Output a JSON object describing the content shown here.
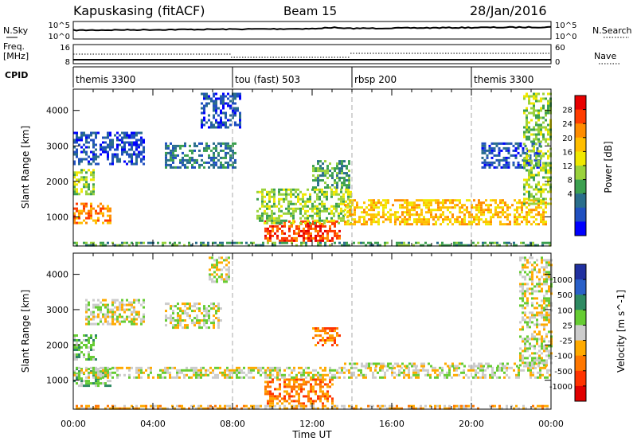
{
  "header": {
    "station": "Kapuskasing (fitACF)",
    "beam": "Beam 15",
    "date": "28/Jan/2016"
  },
  "top_strip": {
    "left_label": "N.Sky",
    "right_label": "N.Search",
    "left_ticks": [
      "10^5",
      "10^0"
    ],
    "right_ticks": [
      "10^5",
      "10^0"
    ]
  },
  "freq_strip": {
    "left_label_1": "Freq.",
    "left_label_2": "[MHz]",
    "left_ticks": [
      "16",
      "8"
    ],
    "right_label": "Nave",
    "right_ticks": [
      "60",
      "0"
    ]
  },
  "cpid": {
    "label": "CPID",
    "segments": [
      {
        "label": "themis 3300",
        "start_hour": 0
      },
      {
        "label": "tou (fast) 503",
        "start_hour": 8
      },
      {
        "label": "rbsp 200",
        "start_hour": 14
      },
      {
        "label": "themis 3300",
        "start_hour": 20
      }
    ]
  },
  "x_axis": {
    "label": "Time UT",
    "ticks": [
      "00:00",
      "04:00",
      "08:00",
      "12:00",
      "16:00",
      "20:00",
      "00:00"
    ],
    "range_hours": [
      0,
      24
    ]
  },
  "chart_data": [
    {
      "type": "heatmap",
      "ylabel": "Slant Range [km]",
      "ylim": [
        180,
        4600
      ],
      "yticks": [
        1000,
        2000,
        3000,
        4000
      ],
      "colorbar": {
        "title": "Power [dB]",
        "labels": [
          "28",
          "24",
          "20",
          "16",
          "12",
          "8",
          "4"
        ],
        "colors": [
          "#e80000",
          "#ff3c00",
          "#ff8c00",
          "#ffbe00",
          "#f0e800",
          "#9ad23c",
          "#3ca050",
          "#2a6e8c",
          "#2050c0",
          "#0000ff"
        ]
      },
      "regions": [
        {
          "t": [
            6.4,
            8.4
          ],
          "r": [
            3500,
            4500
          ],
          "level": 1
        },
        {
          "t": [
            0.0,
            3.6
          ],
          "r": [
            2500,
            3400
          ],
          "level": 1
        },
        {
          "t": [
            4.6,
            8.2
          ],
          "r": [
            2400,
            3100
          ],
          "level": 2
        },
        {
          "t": [
            0.0,
            1.0
          ],
          "r": [
            1650,
            2350
          ],
          "level": 4
        },
        {
          "t": [
            0.0,
            1.9
          ],
          "r": [
            850,
            1400
          ],
          "level": 7
        },
        {
          "t": [
            9.6,
            13.4
          ],
          "r": [
            300,
            900
          ],
          "level": 8
        },
        {
          "t": [
            9.2,
            14.0
          ],
          "r": [
            800,
            1800
          ],
          "level": 4
        },
        {
          "t": [
            12.0,
            13.8
          ],
          "r": [
            1800,
            2600
          ],
          "level": 3
        },
        {
          "t": [
            13.6,
            23.7
          ],
          "r": [
            800,
            1500
          ],
          "level": 6
        },
        {
          "t": [
            20.5,
            23.5
          ],
          "r": [
            2400,
            3100
          ],
          "level": 1
        },
        {
          "t": [
            22.6,
            24.0
          ],
          "r": [
            1400,
            4500
          ],
          "level": 4
        },
        {
          "t": [
            0.0,
            24.0
          ],
          "r": [
            180,
            300
          ],
          "level": 3
        }
      ]
    },
    {
      "type": "heatmap",
      "ylabel": "Slant Range [km]",
      "ylim": [
        180,
        4600
      ],
      "yticks": [
        1000,
        2000,
        3000,
        4000
      ],
      "colorbar": {
        "title": "Velocity [m s^-1]",
        "labels": [
          "1000",
          "500",
          "100",
          "25",
          "-25",
          "-100",
          "-500",
          "-1000"
        ],
        "colors": [
          "#2030a0",
          "#2a60c8",
          "#2e8a62",
          "#66cc33",
          "#cccccc",
          "#ffaa00",
          "#ff7700",
          "#ff3300",
          "#e00000"
        ]
      },
      "regions": [
        {
          "t": [
            6.8,
            7.8
          ],
          "r": [
            3800,
            4500
          ],
          "level": 4
        },
        {
          "t": [
            0.6,
            3.6
          ],
          "r": [
            2600,
            3300
          ],
          "level": 4
        },
        {
          "t": [
            4.6,
            7.4
          ],
          "r": [
            2500,
            3200
          ],
          "level": 4
        },
        {
          "t": [
            0.0,
            1.2
          ],
          "r": [
            1600,
            2300
          ],
          "level": 3
        },
        {
          "t": [
            0.0,
            1.9
          ],
          "r": [
            850,
            1350
          ],
          "level": 3
        },
        {
          "t": [
            9.6,
            13.0
          ],
          "r": [
            350,
            1050
          ],
          "level": 6
        },
        {
          "t": [
            12.0,
            13.4
          ],
          "r": [
            2000,
            2500
          ],
          "level": 6
        },
        {
          "t": [
            0.0,
            24.0
          ],
          "r": [
            1050,
            1380
          ],
          "level": 4
        },
        {
          "t": [
            13.6,
            23.7
          ],
          "r": [
            1380,
            1500
          ],
          "level": 4
        },
        {
          "t": [
            22.4,
            24.0
          ],
          "r": [
            1400,
            4500
          ],
          "level": 4
        },
        {
          "t": [
            0.0,
            24.0
          ],
          "r": [
            180,
            300
          ],
          "level": 5
        }
      ]
    }
  ]
}
